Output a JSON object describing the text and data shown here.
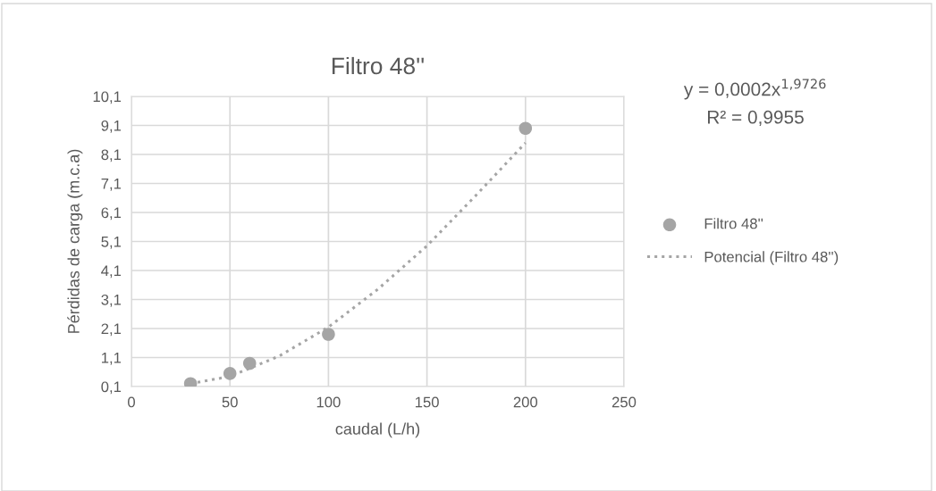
{
  "chart_data": {
    "type": "scatter",
    "title": "Filtro 48''",
    "xlabel": "caudal (L/h)",
    "ylabel": "Pérdidas de carga (m.c.a)",
    "annotations": [
      "y = 0,0002x$^{1,9726}$",
      "R² = 0,9955"
    ],
    "series": [
      {
        "name": "Filtro 48''",
        "color": "#a5a5a5",
        "marker": "circle",
        "x": [
          30,
          50,
          60,
          100,
          200
        ],
        "values": [
          0.2,
          0.55,
          0.9,
          1.9,
          9.0
        ]
      },
      {
        "name": "Potencial (Filtro 48'')",
        "type": "line",
        "color": "#a5a5a5",
        "line_style": "dotted",
        "marker": "none",
        "x": [
          30,
          50,
          75,
          100,
          125,
          150,
          175,
          200
        ],
        "values": [
          0.2,
          0.45,
          1.15,
          2.15,
          3.45,
          4.95,
          6.7,
          8.5
        ]
      }
    ],
    "xlim": [
      0,
      250
    ],
    "xticks": [
      0,
      50,
      100,
      150,
      200,
      250
    ],
    "ylim": [
      0.1,
      10.1
    ],
    "yticks": [
      {
        "value": 0.1,
        "label": "0,1"
      },
      {
        "value": 1.1,
        "label": "1,1"
      },
      {
        "value": 2.1,
        "label": "2,1"
      },
      {
        "value": 3.1,
        "label": "3,1"
      },
      {
        "value": 4.1,
        "label": "4,1"
      },
      {
        "value": 5.1,
        "label": "5,1"
      },
      {
        "value": 6.1,
        "label": "6,1"
      },
      {
        "value": 7.1,
        "label": "7,1"
      },
      {
        "value": 8.1,
        "label": "8,1"
      },
      {
        "value": 9.1,
        "label": "9,1"
      },
      {
        "value": 10.1,
        "label": "10,1"
      }
    ],
    "grid": true,
    "legend": "right"
  }
}
